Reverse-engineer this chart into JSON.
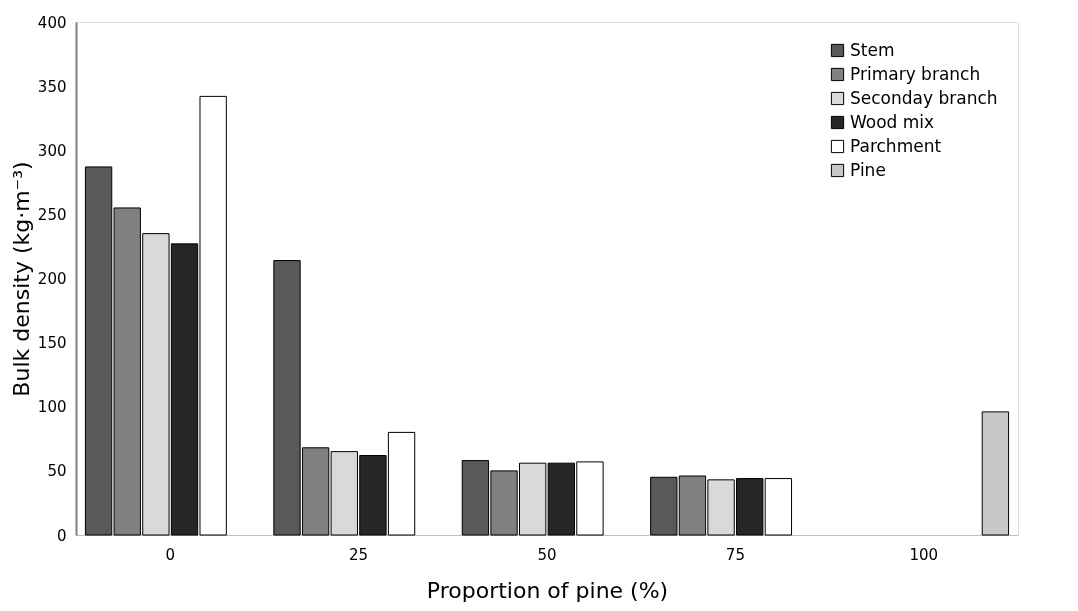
{
  "chart_data": {
    "type": "bar",
    "xlabel": "Proportion of pine (%)",
    "ylabel": "Bulk density (kg·m⁻³)",
    "categories": [
      "0",
      "25",
      "50",
      "75",
      "100"
    ],
    "series": [
      {
        "name": "Stem",
        "color": "#595959",
        "values": [
          287,
          214,
          58,
          45,
          null
        ]
      },
      {
        "name": "Primary branch",
        "color": "#808080",
        "values": [
          255,
          68,
          50,
          46,
          null
        ]
      },
      {
        "name": "Seconday branch",
        "color": "#d9d9d9",
        "values": [
          235,
          65,
          56,
          43,
          null
        ]
      },
      {
        "name": "Wood mix",
        "color": "#262626",
        "values": [
          227,
          62,
          56,
          44,
          null
        ]
      },
      {
        "name": "Parchment",
        "color": "#ffffff",
        "values": [
          342,
          80,
          57,
          44,
          null
        ]
      },
      {
        "name": "Pine",
        "color": "#c8c8c8",
        "values": [
          null,
          null,
          null,
          null,
          96
        ]
      }
    ],
    "ylim": [
      0,
      400
    ],
    "yticks": [
      0,
      50,
      100,
      150,
      200,
      250,
      300,
      350,
      400
    ],
    "grid": false,
    "legend": "top right"
  }
}
